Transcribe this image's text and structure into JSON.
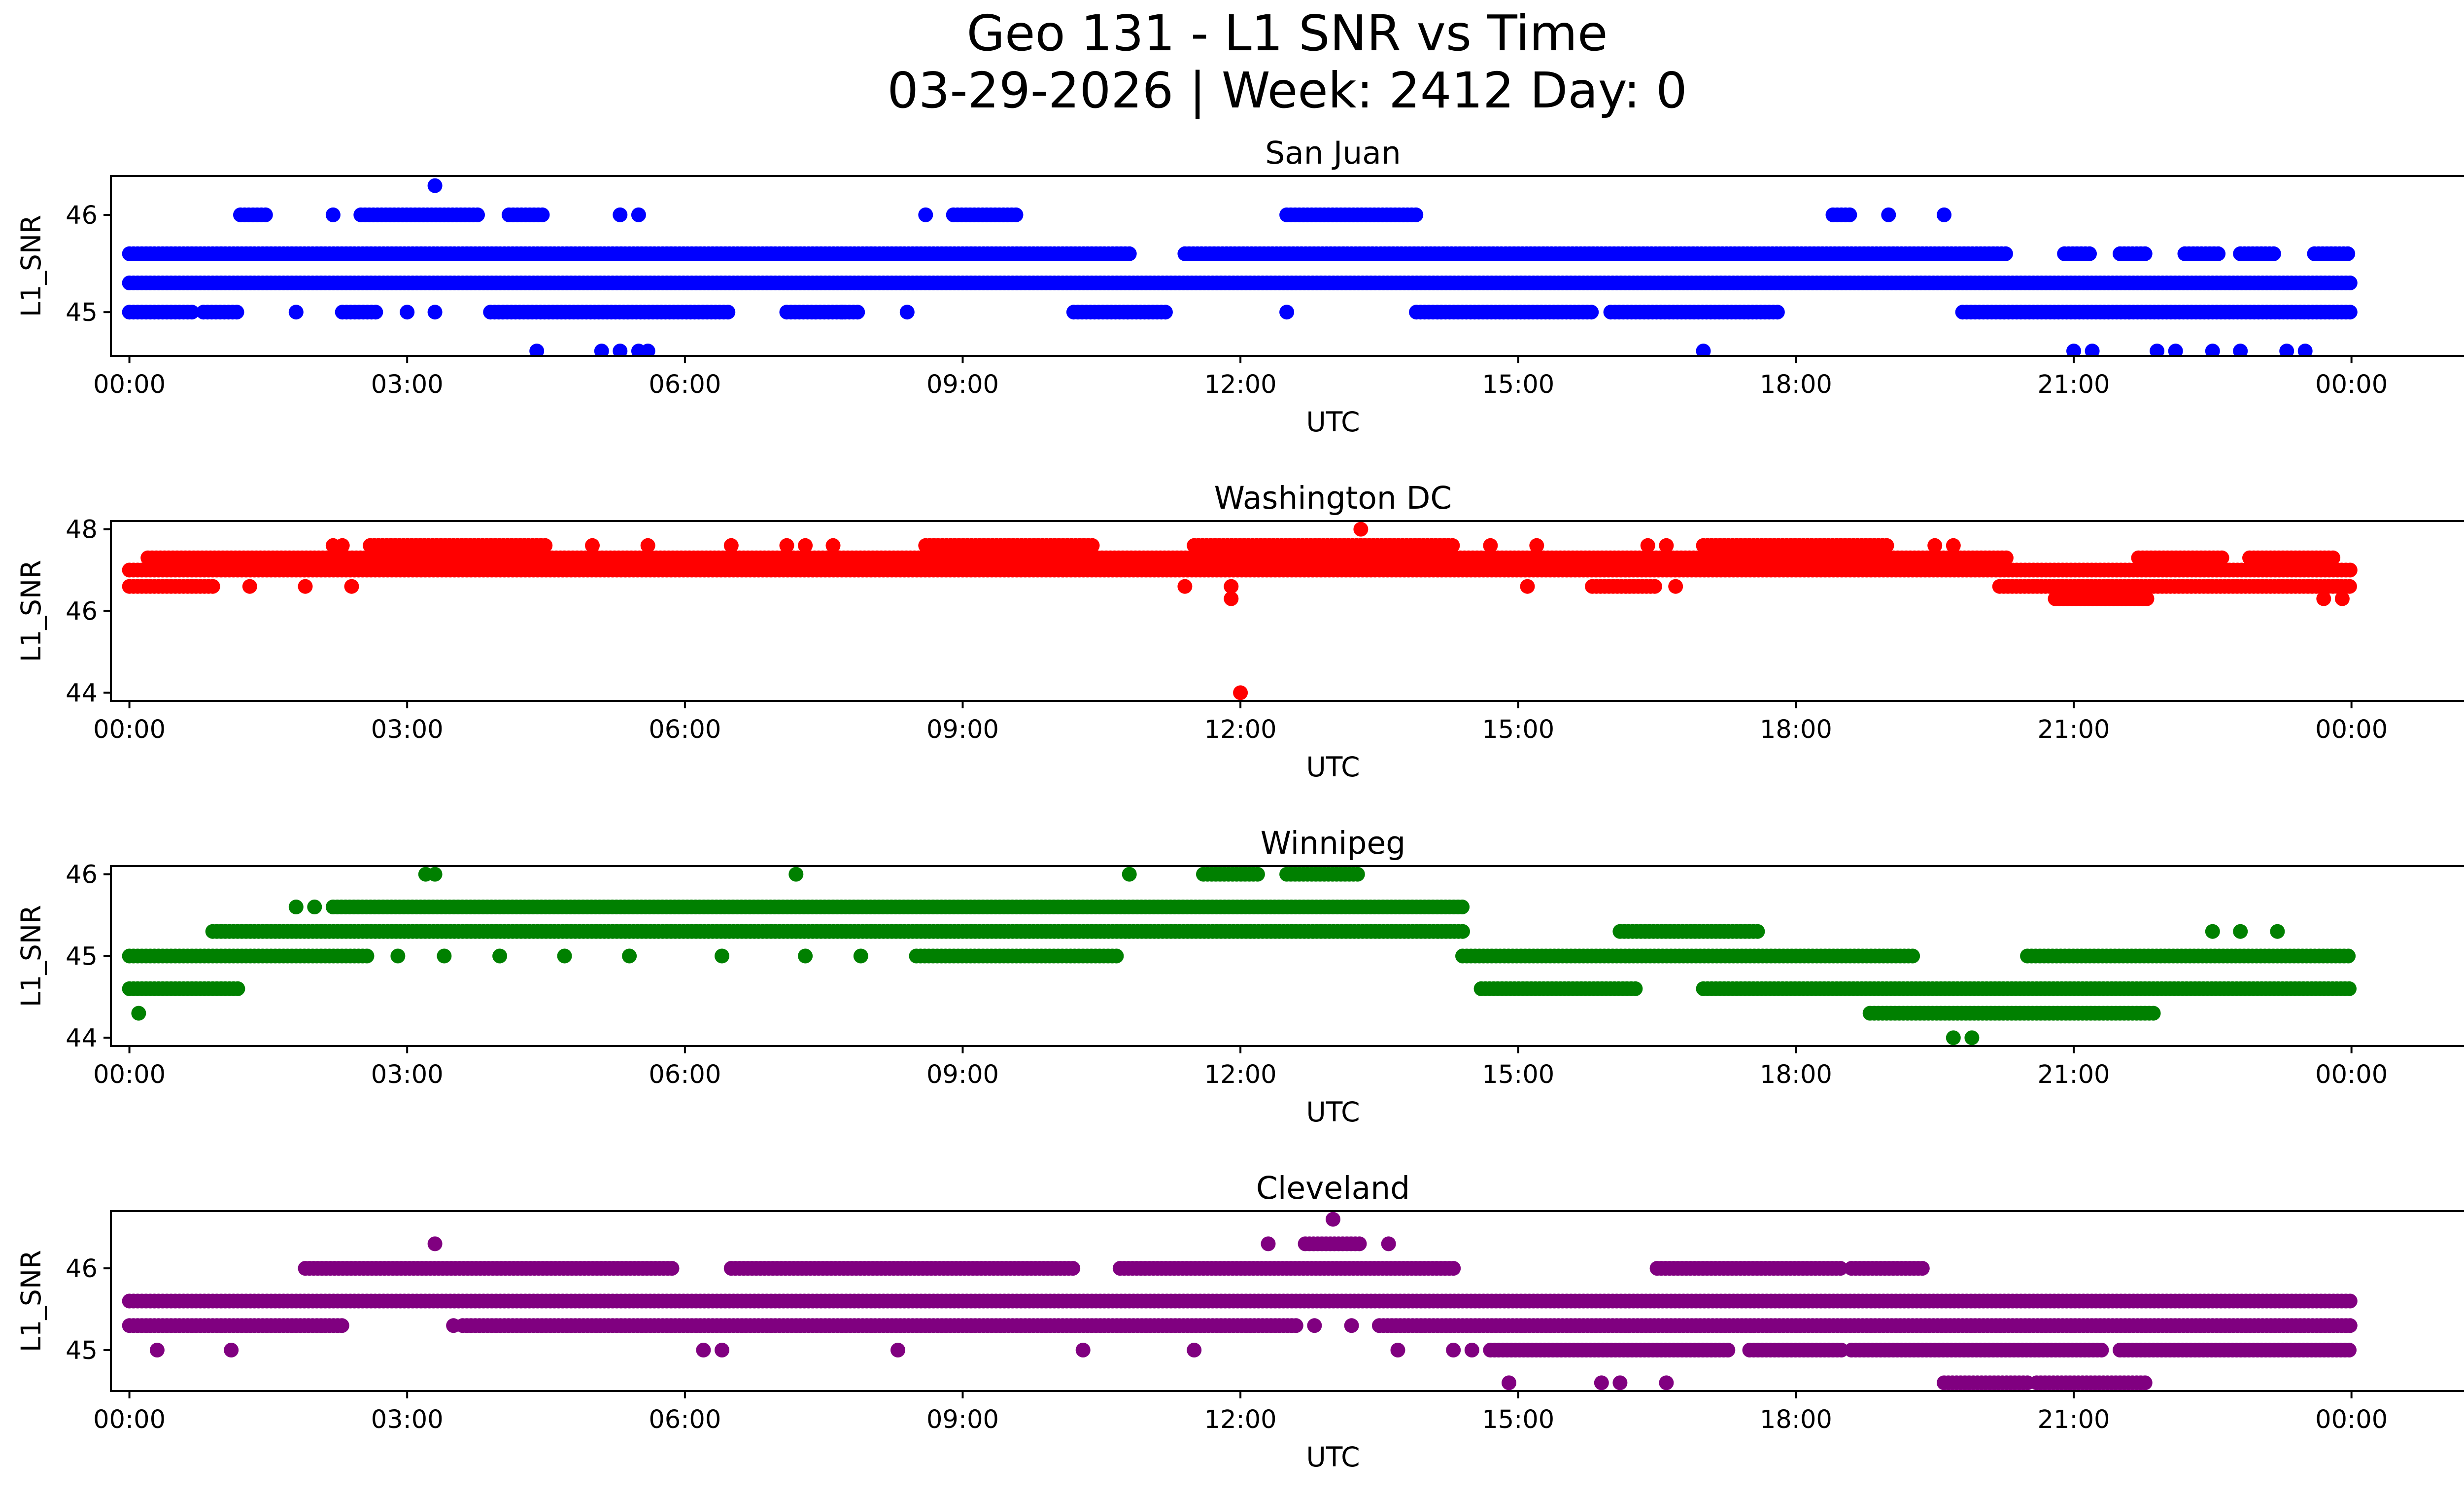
{
  "title_line1": "Geo 131 - L1 SNR vs Time",
  "title_line2": "03-29-2026 | Week: 2412 Day: 0",
  "chart_data": [
    {
      "type": "scatter",
      "title": "San Juan",
      "xlabel": "UTC",
      "ylabel": "L1_SNR",
      "color": "#0000ff",
      "xlim": [
        -0.2,
        26.2
      ],
      "ylim": [
        44.55,
        46.4
      ],
      "yticks": [
        45,
        46
      ],
      "xticks": [
        "00:00",
        "03:00",
        "06:00",
        "09:00",
        "12:00",
        "15:00",
        "18:00",
        "21:00",
        "00:00"
      ],
      "x_unit": "hours since 2026-03-29 00:00 UTC",
      "bands": [
        {
          "y": 45.3,
          "x": [
            [
              0,
              24
            ]
          ]
        },
        {
          "y": 45.6,
          "x": [
            [
              0,
              10.8
            ],
            [
              11.4,
              20.3
            ],
            [
              20.9,
              21.2
            ],
            [
              21.5,
              21.8
            ],
            [
              22.2,
              22.6
            ],
            [
              22.8,
              23.2
            ],
            [
              23.6,
              24
            ]
          ]
        },
        {
          "y": 45.0,
          "x": [
            [
              0,
              0.7
            ],
            [
              0.8,
              1.2
            ],
            [
              2.3,
              2.7
            ],
            [
              3.9,
              6.5
            ],
            [
              7.1,
              7.9
            ],
            [
              10.2,
              11.2
            ],
            [
              13.9,
              15.8
            ],
            [
              16.0,
              17.8
            ],
            [
              19.8,
              24
            ]
          ]
        },
        {
          "y": 46.0,
          "x": [
            [
              1.2,
              1.5
            ],
            [
              2.5,
              3.8
            ],
            [
              4.1,
              4.5
            ],
            [
              8.9,
              9.6
            ],
            [
              12.5,
              13.9
            ],
            [
              18.4,
              18.6
            ]
          ]
        }
      ],
      "points": [
        {
          "x": 3.3,
          "y": 46.3
        },
        {
          "x": 2.2,
          "y": 46.0
        },
        {
          "x": 5.3,
          "y": 46.0
        },
        {
          "x": 5.5,
          "y": 46.0
        },
        {
          "x": 8.6,
          "y": 46.0
        },
        {
          "x": 19.0,
          "y": 46.0
        },
        {
          "x": 19.6,
          "y": 46.0
        },
        {
          "x": 1.8,
          "y": 45.0
        },
        {
          "x": 3.0,
          "y": 45.0
        },
        {
          "x": 3.3,
          "y": 45.0
        },
        {
          "x": 7.7,
          "y": 45.0
        },
        {
          "x": 8.4,
          "y": 45.0
        },
        {
          "x": 12.5,
          "y": 45.0
        },
        {
          "x": 4.4,
          "y": 44.6
        },
        {
          "x": 5.1,
          "y": 44.6
        },
        {
          "x": 5.3,
          "y": 44.6
        },
        {
          "x": 5.5,
          "y": 44.6
        },
        {
          "x": 5.6,
          "y": 44.6
        },
        {
          "x": 17.0,
          "y": 44.6
        },
        {
          "x": 21.0,
          "y": 44.6
        },
        {
          "x": 21.2,
          "y": 44.6
        },
        {
          "x": 21.9,
          "y": 44.6
        },
        {
          "x": 22.1,
          "y": 44.6
        },
        {
          "x": 22.5,
          "y": 44.6
        },
        {
          "x": 22.8,
          "y": 44.6
        },
        {
          "x": 23.3,
          "y": 44.6
        },
        {
          "x": 23.5,
          "y": 44.6
        }
      ]
    },
    {
      "type": "scatter",
      "title": "Washington DC",
      "xlabel": "UTC",
      "ylabel": "L1_SNR",
      "color": "#ff0000",
      "xlim": [
        -0.2,
        26.2
      ],
      "ylim": [
        43.8,
        48.2
      ],
      "yticks": [
        44,
        46,
        48
      ],
      "xticks": [
        "00:00",
        "03:00",
        "06:00",
        "09:00",
        "12:00",
        "15:00",
        "18:00",
        "21:00",
        "00:00"
      ],
      "x_unit": "hours since 2026-03-29 00:00 UTC",
      "bands": [
        {
          "y": 47.0,
          "x": [
            [
              0,
              24
            ]
          ]
        },
        {
          "y": 47.3,
          "x": [
            [
              0.2,
              20.3
            ],
            [
              21.7,
              22.6
            ],
            [
              22.9,
              23.8
            ]
          ]
        },
        {
          "y": 47.6,
          "x": [
            [
              2.6,
              4.5
            ],
            [
              8.6,
              10.4
            ],
            [
              11.5,
              14.3
            ],
            [
              17.0,
              19.0
            ]
          ]
        },
        {
          "y": 46.6,
          "x": [
            [
              0,
              0.9
            ],
            [
              15.8,
              16.5
            ],
            [
              20.2,
              24
            ]
          ]
        },
        {
          "y": 46.3,
          "x": [
            [
              20.8,
              21.8
            ]
          ]
        },
        {
          "y": 47.5,
          "x": [
            [
              12.5,
              14.2
            ]
          ]
        }
      ],
      "points": [
        {
          "x": 12.0,
          "y": 44.0
        },
        {
          "x": 13.3,
          "y": 48.0
        },
        {
          "x": 11.9,
          "y": 46.3
        },
        {
          "x": 11.9,
          "y": 46.6
        },
        {
          "x": 1.3,
          "y": 46.6
        },
        {
          "x": 1.9,
          "y": 46.6
        },
        {
          "x": 2.4,
          "y": 46.6
        },
        {
          "x": 11.4,
          "y": 46.6
        },
        {
          "x": 15.1,
          "y": 46.6
        },
        {
          "x": 16.7,
          "y": 46.6
        },
        {
          "x": 23.7,
          "y": 46.3
        },
        {
          "x": 23.9,
          "y": 46.3
        },
        {
          "x": 2.2,
          "y": 47.6
        },
        {
          "x": 2.3,
          "y": 47.6
        },
        {
          "x": 5.0,
          "y": 47.6
        },
        {
          "x": 5.6,
          "y": 47.6
        },
        {
          "x": 6.5,
          "y": 47.6
        },
        {
          "x": 7.1,
          "y": 47.6
        },
        {
          "x": 7.3,
          "y": 47.6
        },
        {
          "x": 7.6,
          "y": 47.6
        },
        {
          "x": 14.7,
          "y": 47.6
        },
        {
          "x": 15.2,
          "y": 47.6
        },
        {
          "x": 16.4,
          "y": 47.6
        },
        {
          "x": 16.6,
          "y": 47.6
        },
        {
          "x": 19.5,
          "y": 47.6
        },
        {
          "x": 19.7,
          "y": 47.6
        }
      ]
    },
    {
      "type": "scatter",
      "title": "Winnipeg",
      "xlabel": "UTC",
      "ylabel": "L1_SNR",
      "color": "#008000",
      "xlim": [
        -0.2,
        26.2
      ],
      "ylim": [
        43.9,
        46.1
      ],
      "yticks": [
        44,
        45,
        46
      ],
      "xticks": [
        "00:00",
        "03:00",
        "06:00",
        "09:00",
        "12:00",
        "15:00",
        "18:00",
        "21:00",
        "00:00"
      ],
      "x_unit": "hours since 2026-03-29 00:00 UTC",
      "bands": [
        {
          "y": 45.0,
          "x": [
            [
              0,
              2.6
            ],
            [
              8.5,
              10.7
            ],
            [
              14.4,
              19.3
            ],
            [
              20.5,
              24
            ]
          ]
        },
        {
          "y": 45.3,
          "x": [
            [
              0.9,
              14.4
            ],
            [
              16.1,
              17.6
            ]
          ]
        },
        {
          "y": 45.6,
          "x": [
            [
              2.2,
              14.4
            ]
          ]
        },
        {
          "y": 44.6,
          "x": [
            [
              0,
              1.2
            ],
            [
              14.6,
              16.3
            ],
            [
              17.0,
              24
            ]
          ]
        },
        {
          "y": 44.3,
          "x": [
            [
              18.8,
              21.9
            ]
          ]
        },
        {
          "y": 46.0,
          "x": [
            [
              11.6,
              12.2
            ],
            [
              12.5,
              13.3
            ]
          ]
        }
      ],
      "points": [
        {
          "x": 0.1,
          "y": 44.3
        },
        {
          "x": 3.2,
          "y": 46.0
        },
        {
          "x": 3.3,
          "y": 46.0
        },
        {
          "x": 7.2,
          "y": 46.0
        },
        {
          "x": 10.8,
          "y": 46.0
        },
        {
          "x": 1.8,
          "y": 45.6
        },
        {
          "x": 2.0,
          "y": 45.6
        },
        {
          "x": 2.9,
          "y": 45.0
        },
        {
          "x": 3.4,
          "y": 45.0
        },
        {
          "x": 4.0,
          "y": 45.0
        },
        {
          "x": 4.7,
          "y": 45.0
        },
        {
          "x": 5.4,
          "y": 45.0
        },
        {
          "x": 6.4,
          "y": 45.0
        },
        {
          "x": 7.3,
          "y": 45.0
        },
        {
          "x": 7.9,
          "y": 45.0
        },
        {
          "x": 19.7,
          "y": 44.0
        },
        {
          "x": 19.9,
          "y": 44.0
        },
        {
          "x": 22.5,
          "y": 45.3
        },
        {
          "x": 22.8,
          "y": 45.3
        },
        {
          "x": 23.2,
          "y": 45.3
        }
      ]
    },
    {
      "type": "scatter",
      "title": "Cleveland",
      "xlabel": "UTC",
      "ylabel": "L1_SNR",
      "color": "#800080",
      "xlim": [
        -0.2,
        26.2
      ],
      "ylim": [
        44.5,
        46.7
      ],
      "yticks": [
        45,
        46
      ],
      "xticks": [
        "00:00",
        "03:00",
        "06:00",
        "09:00",
        "12:00",
        "15:00",
        "18:00",
        "21:00",
        "00:00"
      ],
      "x_unit": "hours since 2026-03-29 00:00 UTC",
      "bands": [
        {
          "y": 45.6,
          "x": [
            [
              0,
              24
            ]
          ]
        },
        {
          "y": 45.3,
          "x": [
            [
              0,
              2.3
            ],
            [
              3.6,
              12.6
            ],
            [
              13.5,
              24
            ]
          ]
        },
        {
          "y": 46.0,
          "x": [
            [
              1.9,
              5.9
            ],
            [
              6.5,
              10.2
            ],
            [
              10.7,
              14.3
            ],
            [
              16.5,
              18.5
            ],
            [
              18.6,
              19.4
            ]
          ]
        },
        {
          "y": 45.0,
          "x": [
            [
              14.7,
              17.3
            ],
            [
              17.5,
              18.5
            ],
            [
              18.6,
              21.3
            ],
            [
              21.5,
              24
            ]
          ]
        },
        {
          "y": 44.6,
          "x": [
            [
              19.6,
              20.5
            ],
            [
              20.6,
              21.8
            ]
          ]
        },
        {
          "y": 46.3,
          "x": [
            [
              12.7,
              13.3
            ]
          ]
        }
      ],
      "points": [
        {
          "x": 3.3,
          "y": 46.3
        },
        {
          "x": 12.3,
          "y": 46.3
        },
        {
          "x": 13.6,
          "y": 46.3
        },
        {
          "x": 13.0,
          "y": 46.6
        },
        {
          "x": 0.3,
          "y": 45.0
        },
        {
          "x": 1.1,
          "y": 45.0
        },
        {
          "x": 6.2,
          "y": 45.0
        },
        {
          "x": 6.4,
          "y": 45.0
        },
        {
          "x": 8.3,
          "y": 45.0
        },
        {
          "x": 10.3,
          "y": 45.0
        },
        {
          "x": 11.5,
          "y": 45.0
        },
        {
          "x": 13.7,
          "y": 45.0
        },
        {
          "x": 14.3,
          "y": 45.0
        },
        {
          "x": 14.5,
          "y": 45.0
        },
        {
          "x": 14.9,
          "y": 44.6
        },
        {
          "x": 15.9,
          "y": 44.6
        },
        {
          "x": 16.1,
          "y": 44.6
        },
        {
          "x": 16.6,
          "y": 44.6
        },
        {
          "x": 3.5,
          "y": 45.3
        },
        {
          "x": 12.8,
          "y": 45.3
        },
        {
          "x": 13.2,
          "y": 45.3
        }
      ]
    }
  ]
}
